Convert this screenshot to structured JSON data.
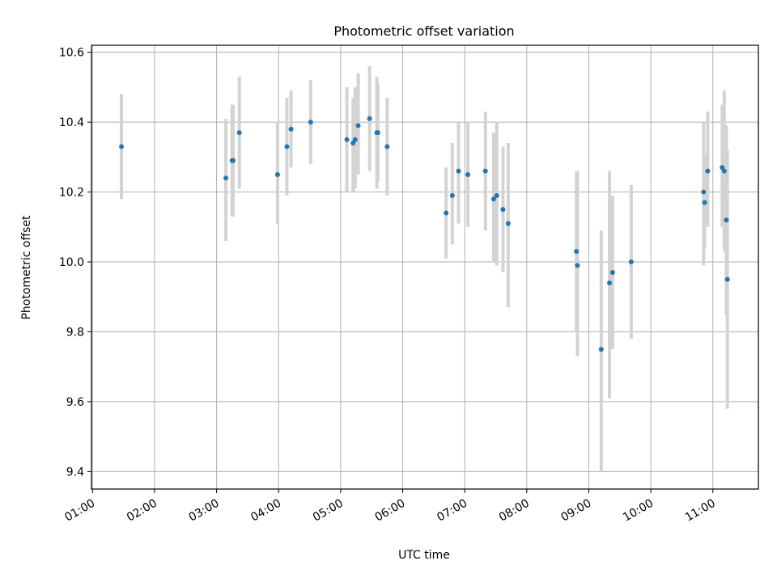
{
  "chart_data": {
    "type": "scatter",
    "title": "Photometric offset variation",
    "xlabel": "UTC time",
    "ylabel": "Photometric offset",
    "xlim": [
      "00:59",
      "11:44"
    ],
    "ylim": [
      9.35,
      10.62
    ],
    "x_ticks": [
      "01:00",
      "02:00",
      "03:00",
      "04:00",
      "05:00",
      "06:00",
      "07:00",
      "08:00",
      "09:00",
      "10:00",
      "11:00"
    ],
    "y_ticks": [
      "9.4",
      "9.6",
      "9.8",
      "10.0",
      "10.2",
      "10.4",
      "10.6"
    ],
    "grid": true,
    "point_color": "#1f77b4",
    "errorbar_color": "#d3d3d3",
    "series": [
      {
        "points": [
          {
            "x": "01:28",
            "y": 10.33,
            "low": 10.18,
            "high": 10.48
          },
          {
            "x": "03:09",
            "y": 10.24,
            "low": 10.06,
            "high": 10.41
          },
          {
            "x": "03:15",
            "y": 10.29,
            "low": 10.13,
            "high": 10.45
          },
          {
            "x": "03:16",
            "y": 10.29,
            "low": 10.13,
            "high": 10.45
          },
          {
            "x": "03:22",
            "y": 10.37,
            "low": 10.21,
            "high": 10.53
          },
          {
            "x": "03:59",
            "y": 10.25,
            "low": 10.11,
            "high": 10.4
          },
          {
            "x": "04:08",
            "y": 10.33,
            "low": 10.19,
            "high": 10.47
          },
          {
            "x": "04:12",
            "y": 10.38,
            "low": 10.27,
            "high": 10.49
          },
          {
            "x": "04:31",
            "y": 10.4,
            "low": 10.28,
            "high": 10.52
          },
          {
            "x": "05:06",
            "y": 10.35,
            "low": 10.2,
            "high": 10.5
          },
          {
            "x": "05:12",
            "y": 10.34,
            "low": 10.2,
            "high": 10.47
          },
          {
            "x": "05:14",
            "y": 10.35,
            "low": 10.21,
            "high": 10.5
          },
          {
            "x": "05:17",
            "y": 10.39,
            "low": 10.25,
            "high": 10.54
          },
          {
            "x": "05:28",
            "y": 10.41,
            "low": 10.26,
            "high": 10.56
          },
          {
            "x": "05:35",
            "y": 10.37,
            "low": 10.21,
            "high": 10.53
          },
          {
            "x": "05:36",
            "y": 10.37,
            "low": 10.23,
            "high": 10.51
          },
          {
            "x": "05:45",
            "y": 10.33,
            "low": 10.19,
            "high": 10.47
          },
          {
            "x": "06:42",
            "y": 10.14,
            "low": 10.01,
            "high": 10.27
          },
          {
            "x": "06:48",
            "y": 10.19,
            "low": 10.05,
            "high": 10.34
          },
          {
            "x": "06:54",
            "y": 10.26,
            "low": 10.11,
            "high": 10.4
          },
          {
            "x": "07:03",
            "y": 10.25,
            "low": 10.1,
            "high": 10.4
          },
          {
            "x": "07:20",
            "y": 10.26,
            "low": 10.09,
            "high": 10.43
          },
          {
            "x": "07:28",
            "y": 10.18,
            "low": 10.0,
            "high": 10.37
          },
          {
            "x": "07:31",
            "y": 10.19,
            "low": 9.99,
            "high": 10.4
          },
          {
            "x": "07:37",
            "y": 10.15,
            "low": 9.97,
            "high": 10.33
          },
          {
            "x": "07:42",
            "y": 10.11,
            "low": 9.87,
            "high": 10.34
          },
          {
            "x": "08:48",
            "y": 10.03,
            "low": 9.8,
            "high": 10.26
          },
          {
            "x": "08:49",
            "y": 9.99,
            "low": 9.73,
            "high": 10.26
          },
          {
            "x": "09:12",
            "y": 9.75,
            "low": 9.4,
            "high": 10.09
          },
          {
            "x": "09:20",
            "y": 9.94,
            "low": 9.61,
            "high": 10.26
          },
          {
            "x": "09:23",
            "y": 9.97,
            "low": 9.75,
            "high": 10.19
          },
          {
            "x": "09:41",
            "y": 10.0,
            "low": 9.78,
            "high": 10.22
          },
          {
            "x": "10:51",
            "y": 10.2,
            "low": 9.99,
            "high": 10.4
          },
          {
            "x": "10:52",
            "y": 10.17,
            "low": 10.04,
            "high": 10.31
          },
          {
            "x": "10:55",
            "y": 10.26,
            "low": 10.1,
            "high": 10.43
          },
          {
            "x": "11:09",
            "y": 10.27,
            "low": 10.1,
            "high": 10.45
          },
          {
            "x": "11:11",
            "y": 10.26,
            "low": 10.03,
            "high": 10.49
          },
          {
            "x": "11:13",
            "y": 10.12,
            "low": 9.85,
            "high": 10.39
          },
          {
            "x": "11:14",
            "y": 9.95,
            "low": 9.58,
            "high": 10.32
          }
        ]
      }
    ]
  }
}
